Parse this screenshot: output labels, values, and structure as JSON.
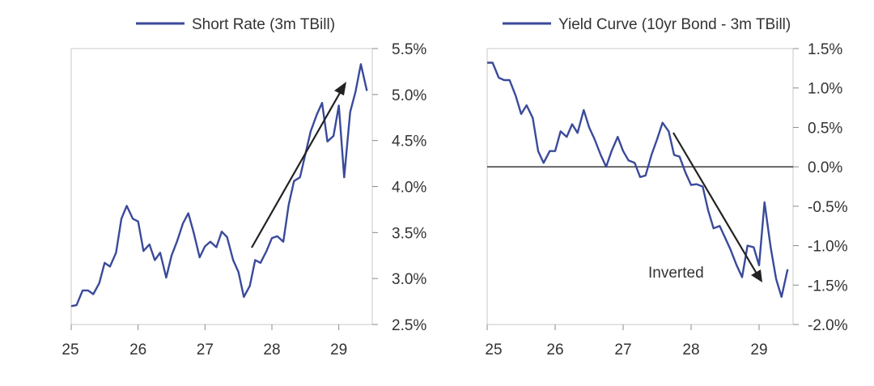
{
  "colors": {
    "series": "#3a4a9a",
    "frame": "#c8c8c8",
    "tick": "#8a8a8a",
    "zero": "#111111",
    "arrow": "#222222",
    "text": "#333333"
  },
  "chart_data": [
    {
      "type": "line",
      "xlim": [
        25,
        29.5
      ],
      "ylim": [
        2.5,
        5.5
      ],
      "x_ticks": [
        25,
        26,
        27,
        28,
        29
      ],
      "x_tick_labels": [
        "25",
        "26",
        "27",
        "28",
        "29"
      ],
      "y_ticks": [
        2.5,
        3.0,
        3.5,
        4.0,
        4.5,
        5.0,
        5.5
      ],
      "y_tick_labels": [
        "2.5%",
        "3.0%",
        "3.5%",
        "4.0%",
        "4.5%",
        "5.0%",
        "5.5%"
      ],
      "y_axis_side": "right",
      "legend_position": "top",
      "series": [
        {
          "name": "Short Rate (3m TBill)",
          "x": [
            25.0,
            25.08,
            25.17,
            25.25,
            25.33,
            25.42,
            25.5,
            25.58,
            25.67,
            25.75,
            25.83,
            25.92,
            26.0,
            26.08,
            26.17,
            26.25,
            26.33,
            26.42,
            26.5,
            26.58,
            26.67,
            26.75,
            26.83,
            26.92,
            27.0,
            27.08,
            27.17,
            27.25,
            27.33,
            27.42,
            27.5,
            27.58,
            27.67,
            27.75,
            27.83,
            27.92,
            28.0,
            28.08,
            28.17,
            28.25,
            28.33,
            28.42,
            28.5,
            28.58,
            28.67,
            28.75,
            28.83,
            28.92,
            29.0,
            29.08,
            29.17,
            29.25,
            29.33,
            29.42
          ],
          "y": [
            2.7,
            2.71,
            2.87,
            2.87,
            2.83,
            2.95,
            3.17,
            3.13,
            3.28,
            3.65,
            3.79,
            3.65,
            3.62,
            3.3,
            3.37,
            3.2,
            3.28,
            3.01,
            3.25,
            3.4,
            3.6,
            3.71,
            3.5,
            3.23,
            3.35,
            3.4,
            3.34,
            3.51,
            3.45,
            3.2,
            3.07,
            2.8,
            2.92,
            3.2,
            3.17,
            3.3,
            3.44,
            3.46,
            3.4,
            3.8,
            4.06,
            4.1,
            4.35,
            4.6,
            4.78,
            4.91,
            4.49,
            4.55,
            4.88,
            4.1,
            4.81,
            5.03,
            5.33,
            5.04
          ]
        }
      ]
    },
    {
      "type": "line",
      "xlim": [
        25,
        29.5
      ],
      "ylim": [
        -2.0,
        1.5
      ],
      "x_ticks": [
        25,
        26,
        27,
        28,
        29
      ],
      "x_tick_labels": [
        "25",
        "26",
        "27",
        "28",
        "29"
      ],
      "y_ticks": [
        -2.0,
        -1.5,
        -1.0,
        -0.5,
        0.0,
        0.5,
        1.0,
        1.5
      ],
      "y_tick_labels": [
        "-2.0%",
        "-1.5%",
        "-1.0%",
        "-0.5%",
        "0.0%",
        "0.5%",
        "1.0%",
        "1.5%"
      ],
      "y_axis_side": "right",
      "legend_position": "top",
      "zero_line": 0.0,
      "annotations": [
        {
          "text": "Inverted",
          "x": 27.4,
          "y": -1.35
        }
      ],
      "series": [
        {
          "name": "Yield Curve (10yr Bond - 3m TBill)",
          "x": [
            25.0,
            25.08,
            25.17,
            25.25,
            25.33,
            25.42,
            25.5,
            25.58,
            25.67,
            25.75,
            25.83,
            25.92,
            26.0,
            26.08,
            26.17,
            26.25,
            26.33,
            26.42,
            26.5,
            26.58,
            26.67,
            26.75,
            26.83,
            26.92,
            27.0,
            27.08,
            27.17,
            27.25,
            27.33,
            27.42,
            27.5,
            27.58,
            27.67,
            27.75,
            27.83,
            27.92,
            28.0,
            28.08,
            28.17,
            28.25,
            28.33,
            28.42,
            28.5,
            28.58,
            28.67,
            28.75,
            28.83,
            28.92,
            29.0,
            29.08,
            29.17,
            29.25,
            29.33,
            29.42
          ],
          "y": [
            1.32,
            1.32,
            1.13,
            1.1,
            1.1,
            0.9,
            0.67,
            0.78,
            0.62,
            0.2,
            0.05,
            0.2,
            0.2,
            0.45,
            0.38,
            0.54,
            0.43,
            0.72,
            0.5,
            0.35,
            0.15,
            0.0,
            0.2,
            0.38,
            0.2,
            0.08,
            0.05,
            -0.13,
            -0.11,
            0.16,
            0.35,
            0.56,
            0.45,
            0.15,
            0.13,
            -0.08,
            -0.23,
            -0.22,
            -0.25,
            -0.55,
            -0.78,
            -0.75,
            -0.9,
            -1.05,
            -1.25,
            -1.4,
            -1.0,
            -1.02,
            -1.25,
            -0.45,
            -1.02,
            -1.42,
            -1.65,
            -1.3
          ]
        }
      ]
    }
  ]
}
